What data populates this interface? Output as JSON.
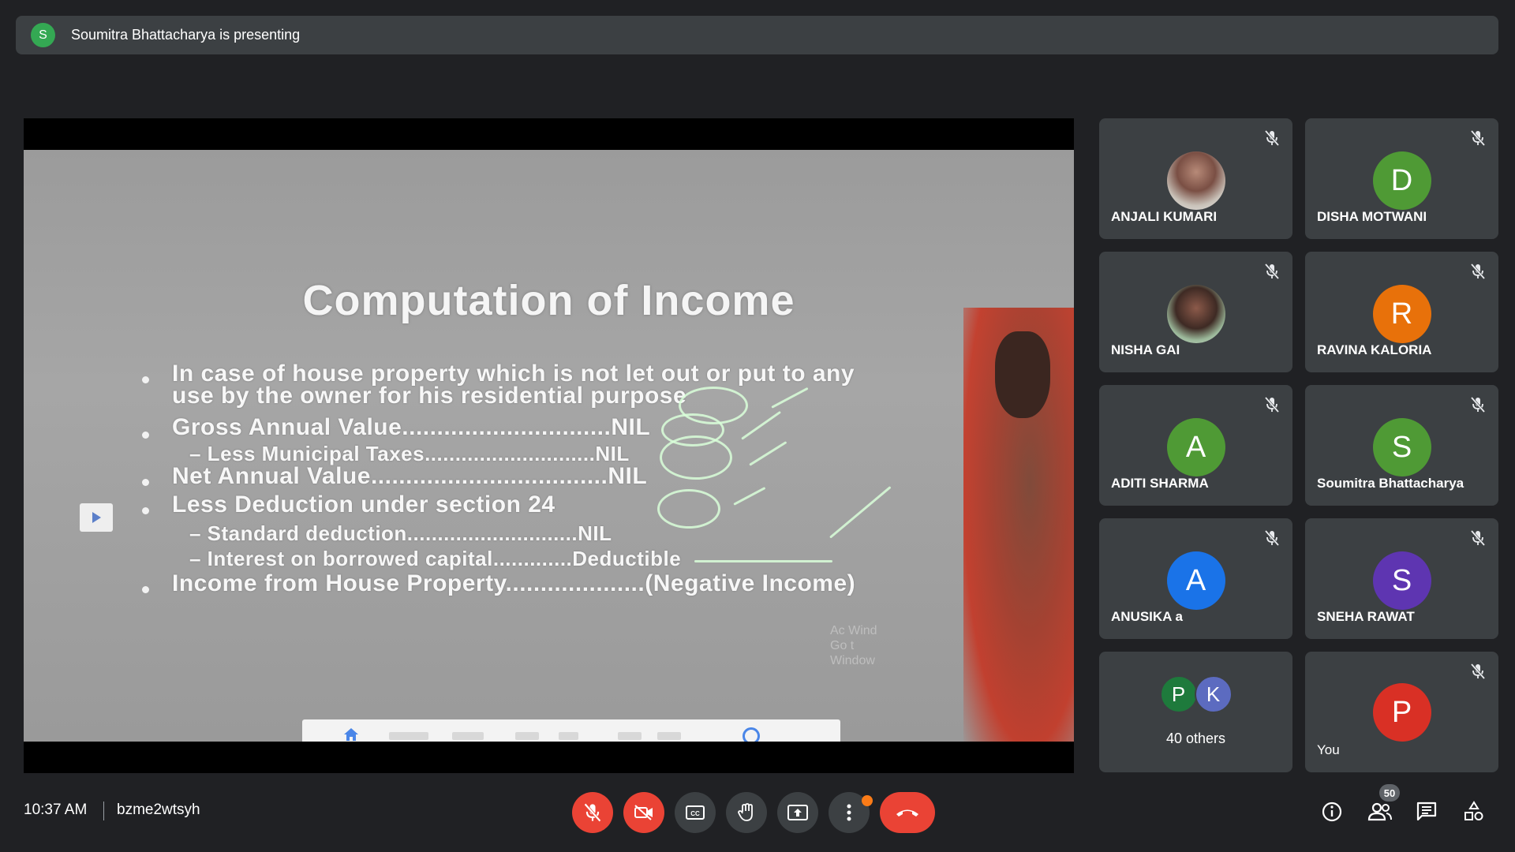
{
  "banner": {
    "avatar_letter": "S",
    "text": "Soumitra Bhattacharya is presenting"
  },
  "slide": {
    "title": "Computation of Income",
    "lines": [
      "In case of house property which is not let out or put to any",
      "use by the owner for his residential purpose",
      "Gross Annual Value..............................NIL",
      "– Less Municipal Taxes............................NIL",
      "Net Annual Value..................................NIL",
      "Less Deduction under section 24",
      "– Standard deduction............................NIL",
      "– Interest on borrowed capital.............Deductible",
      "Income from House Property....................(Negative Income)"
    ],
    "watermark": [
      "Ac       Wind",
      "Go t",
      "Window"
    ]
  },
  "participants": [
    {
      "name": "ANJALI KUMARI",
      "initial": "",
      "color": "",
      "muted": true,
      "photo": true
    },
    {
      "name": "DISHA MOTWANI",
      "initial": "D",
      "color": "#4f9a35",
      "muted": true
    },
    {
      "name": "NISHA GAI",
      "initial": "",
      "color": "",
      "muted": true,
      "photo": true
    },
    {
      "name": "RAVINA KALORIA",
      "initial": "R",
      "color": "#e8710a",
      "muted": true
    },
    {
      "name": "ADITI SHARMA",
      "initial": "A",
      "color": "#4f9a35",
      "muted": true
    },
    {
      "name": "Soumitra Bhattacharya",
      "initial": "S",
      "color": "#4f9a35",
      "muted": true
    },
    {
      "name": "ANUSIKA a",
      "initial": "A",
      "color": "#1a73e8",
      "muted": true
    },
    {
      "name": "SNEHA RAWAT",
      "initial": "S",
      "color": "#5e35b1",
      "muted": true
    },
    {
      "name": "You",
      "initial": "P",
      "color": "#d93025",
      "muted": true
    }
  ],
  "others": {
    "initials": [
      "P",
      "K"
    ],
    "colors": [
      "#1e7a3c",
      "#5c6bc0"
    ],
    "label": "40 others"
  },
  "bottom": {
    "time": "10:37 AM",
    "meeting_code": "bzme2wtsyh",
    "participant_count": "50"
  },
  "colors": {
    "background": "#202124",
    "tile": "#3c4043",
    "danger": "#ea4335"
  }
}
